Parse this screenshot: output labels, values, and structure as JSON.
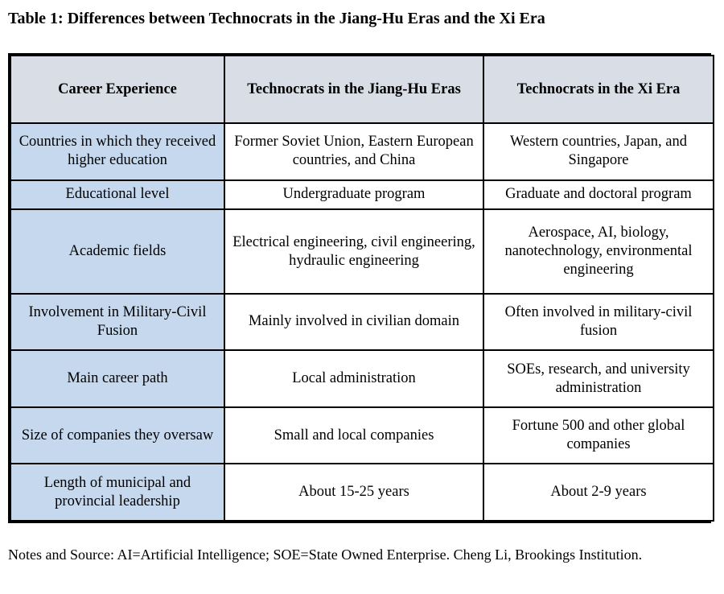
{
  "title": "Table 1: Differences between Technocrats in the Jiang-Hu Eras and the Xi Era",
  "table": {
    "headers": [
      "Career Experience",
      "Technocrats in the Jiang-Hu Eras",
      "Technocrats in the Xi Era"
    ],
    "rows": [
      [
        "Countries in which they received higher education",
        "Former Soviet Union, Eastern European countries, and China",
        "Western countries, Japan, and Singapore"
      ],
      [
        "Educational level",
        "Undergraduate program",
        "Graduate and doctoral program"
      ],
      [
        "Academic fields",
        "Electrical engineering, civil engineering, hydraulic engineering",
        "Aerospace, AI, biology, nanotechnology, environmental engineering"
      ],
      [
        "Involvement in Military-Civil Fusion",
        "Mainly involved in civilian domain",
        "Often involved in military-civil fusion"
      ],
      [
        "Main career path",
        "Local administration",
        "SOEs, research, and university administration"
      ],
      [
        "Size of companies they oversaw",
        "Small and local companies",
        "Fortune 500 and other global companies"
      ],
      [
        "Length of municipal and provincial leadership",
        "About 15-25 years",
        "About 2-9 years"
      ]
    ]
  },
  "notes": "Notes and Source: AI=Artificial Intelligence; SOE=State Owned Enterprise. Cheng Li, Brookings Institution.",
  "colors": {
    "header_bg": "#d9dde6",
    "first_col_bg": "#c5d8ee",
    "border": "#000000"
  }
}
